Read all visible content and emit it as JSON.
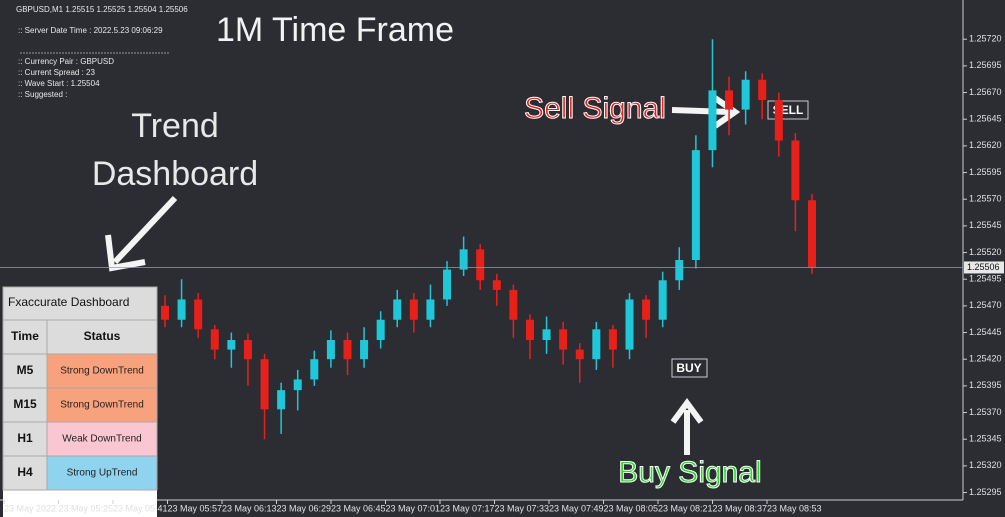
{
  "header": {
    "symbol_line": "GBPUSD,M1  1.25515 1.25525 1.25504 1.25506",
    "info_lines": [
      ":: Server Date Time : 2022.5.23   09:06:29",
      ":: Currency Pair   :  GBPUSD",
      ":: Current Spread  :  23",
      ":: Wave Start      :  1.25504",
      ":: Suggested       :"
    ]
  },
  "annotations": {
    "title": "1M Time Frame",
    "dashboard_label": [
      "Trend",
      "Dashboard"
    ],
    "sell_signal": "Sell Signal",
    "buy_signal": "Buy Signal",
    "sell_tag": "SELL",
    "buy_tag": "BUY"
  },
  "dashboard": {
    "title": "Fxaccurate Dashboard",
    "columns": [
      "Time",
      "Status"
    ],
    "rows": [
      [
        "M5",
        "Strong DownTrend"
      ],
      [
        "M15",
        "Strong DownTrend"
      ],
      [
        "H1",
        "Weak DownTrend"
      ],
      [
        "H4",
        "Strong UpTrend"
      ]
    ],
    "row_colors": [
      "#f7a27c",
      "#f7a27c",
      "#f9c6d2",
      "#8fd3ee"
    ]
  },
  "chart_data": {
    "type": "candlestick",
    "up_color": "#1fc8d8",
    "down_color": "#e8201a",
    "ylim": [
      1.25288,
      1.25753
    ],
    "yticks": [
      {
        "value": 1.2572,
        "label": "1.25720"
      },
      {
        "value": 1.25695,
        "label": "1.25695"
      },
      {
        "value": 1.2567,
        "label": "1.25670"
      },
      {
        "value": 1.25645,
        "label": "1.25645"
      },
      {
        "value": 1.2562,
        "label": "1.25620"
      },
      {
        "value": 1.25595,
        "label": "1.25595"
      },
      {
        "value": 1.2557,
        "label": "1.25570"
      },
      {
        "value": 1.25545,
        "label": "1.25545"
      },
      {
        "value": 1.2552,
        "label": "1.25520"
      },
      {
        "value": 1.25495,
        "label": "1.25495"
      },
      {
        "value": 1.2547,
        "label": "1.25470"
      },
      {
        "value": 1.25445,
        "label": "1.25445"
      },
      {
        "value": 1.2542,
        "label": "1.25420"
      },
      {
        "value": 1.25395,
        "label": "1.25395"
      },
      {
        "value": 1.2537,
        "label": "1.25370"
      },
      {
        "value": 1.25345,
        "label": "1.25345"
      },
      {
        "value": 1.2532,
        "label": "1.25320"
      },
      {
        "value": 1.25295,
        "label": "1.25295"
      }
    ],
    "current_price": 1.25506,
    "xticks": [
      "23 May 2022",
      "23 May 05:25",
      "23 May 05:41",
      "23 May 05:57",
      "23 May 06:13",
      "23 May 06:29",
      "23 May 06:45",
      "23 May 07:01",
      "23 May 07:17",
      "23 May 07:33",
      "23 May 07:49",
      "23 May 08:05",
      "23 May 08:21",
      "23 May 08:37",
      "23 May 08:53"
    ],
    "open": [
      1.2547,
      1.25457,
      1.25476,
      1.25448,
      1.25429,
      1.25438,
      1.2542,
      1.25373,
      1.25391,
      1.25401,
      1.2542,
      1.25438,
      1.2542,
      1.25438,
      1.25457,
      1.25476,
      1.25457,
      1.25476,
      1.25504,
      1.25523,
      1.25494,
      1.25485,
      1.25457,
      1.25438,
      1.25448,
      1.25429,
      1.2542,
      1.25448,
      1.25429,
      1.25476,
      1.25457,
      1.25494,
      1.25513,
      1.25616,
      1.25672,
      1.25654,
      1.25682,
      1.25663,
      1.25625,
      1.25569
    ],
    "high": [
      1.2548,
      1.25495,
      1.25482,
      1.25452,
      1.25445,
      1.25444,
      1.25425,
      1.25398,
      1.2541,
      1.25428,
      1.25447,
      1.25445,
      1.2545,
      1.25465,
      1.25485,
      1.25482,
      1.2549,
      1.25512,
      1.25535,
      1.25528,
      1.255,
      1.2549,
      1.25462,
      1.2546,
      1.25455,
      1.25435,
      1.25455,
      1.25452,
      1.25482,
      1.2548,
      1.25502,
      1.25525,
      1.2563,
      1.2572,
      1.25685,
      1.2569,
      1.25688,
      1.2567,
      1.25632,
      1.25575
    ],
    "low": [
      1.2545,
      1.2545,
      1.2544,
      1.2542,
      1.25412,
      1.25395,
      1.25345,
      1.2535,
      1.25372,
      1.25395,
      1.25412,
      1.25405,
      1.25412,
      1.2543,
      1.2545,
      1.25445,
      1.2545,
      1.2547,
      1.25498,
      1.25485,
      1.2547,
      1.2544,
      1.2542,
      1.25425,
      1.25415,
      1.25398,
      1.2541,
      1.25412,
      1.2542,
      1.2544,
      1.2545,
      1.25485,
      1.25505,
      1.256,
      1.2563,
      1.2564,
      1.25645,
      1.2561,
      1.2554,
      1.255
    ],
    "close": [
      1.25457,
      1.25476,
      1.25448,
      1.25429,
      1.25438,
      1.2542,
      1.25373,
      1.25391,
      1.25401,
      1.2542,
      1.25438,
      1.2542,
      1.25438,
      1.25457,
      1.25476,
      1.25457,
      1.25476,
      1.25504,
      1.25523,
      1.25494,
      1.25485,
      1.25457,
      1.25438,
      1.25448,
      1.25429,
      1.2542,
      1.25448,
      1.25429,
      1.25476,
      1.25457,
      1.25494,
      1.25513,
      1.25616,
      1.25672,
      1.25654,
      1.25682,
      1.25663,
      1.25625,
      1.25569,
      1.25506
    ]
  }
}
